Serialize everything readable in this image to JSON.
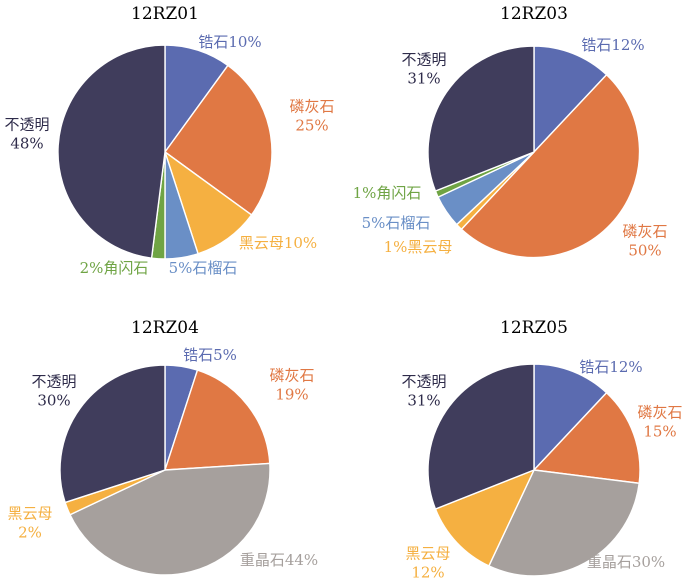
{
  "chart_data": [
    {
      "type": "pie",
      "title": "12RZ01",
      "slices": [
        {
          "label": "锆石",
          "value": 10,
          "color": "#5b6bb0",
          "lines": [
            "锆石10%"
          ]
        },
        {
          "label": "磷灰石",
          "value": 25,
          "color": "#e07844",
          "lines": [
            "磷灰石",
            "25%"
          ]
        },
        {
          "label": "黑云母",
          "value": 10,
          "color": "#f5b041",
          "lines": [
            "黑云母10%"
          ]
        },
        {
          "label": "石榴石",
          "value": 5,
          "color": "#6a8fc6",
          "lines": [
            "5%石榴石"
          ]
        },
        {
          "label": "角闪石",
          "value": 2,
          "color": "#6fa444",
          "lines": [
            "2%角闪石"
          ]
        },
        {
          "label": "不透明",
          "value": 48,
          "color": "#403d5c",
          "lines": [
            "不透明",
            "48%"
          ]
        }
      ]
    },
    {
      "type": "pie",
      "title": "12RZ03",
      "slices": [
        {
          "label": "锆石",
          "value": 12,
          "color": "#5b6bb0",
          "lines": [
            "锆石12%"
          ]
        },
        {
          "label": "磷灰石",
          "value": 50,
          "color": "#e07844",
          "lines": [
            "磷灰石",
            "50%"
          ]
        },
        {
          "label": "黑云母",
          "value": 1,
          "color": "#f5b041",
          "lines": [
            "1%黑云母"
          ]
        },
        {
          "label": "石榴石",
          "value": 5,
          "color": "#6a8fc6",
          "lines": [
            "5%石榴石"
          ]
        },
        {
          "label": "角闪石",
          "value": 1,
          "color": "#6fa444",
          "lines": [
            "1%角闪石"
          ]
        },
        {
          "label": "不透明",
          "value": 31,
          "color": "#403d5c",
          "lines": [
            "不透明",
            "31%"
          ]
        }
      ]
    },
    {
      "type": "pie",
      "title": "12RZ04",
      "slices": [
        {
          "label": "锆石",
          "value": 5,
          "color": "#5b6bb0",
          "lines": [
            "锆石5%"
          ]
        },
        {
          "label": "磷灰石",
          "value": 19,
          "color": "#e07844",
          "lines": [
            "磷灰石",
            "19%"
          ]
        },
        {
          "label": "重晶石",
          "value": 44,
          "color": "#a6a09d",
          "lines": [
            "重晶石44%"
          ]
        },
        {
          "label": "黑云母",
          "value": 2,
          "color": "#f5b041",
          "lines": [
            "黑云母",
            "2%"
          ]
        },
        {
          "label": "不透明",
          "value": 30,
          "color": "#403d5c",
          "lines": [
            "不透明",
            "30%"
          ]
        }
      ]
    },
    {
      "type": "pie",
      "title": "12RZ05",
      "slices": [
        {
          "label": "锆石",
          "value": 12,
          "color": "#5b6bb0",
          "lines": [
            "锆石12%"
          ]
        },
        {
          "label": "磷灰石",
          "value": 15,
          "color": "#e07844",
          "lines": [
            "磷灰石",
            "15%"
          ]
        },
        {
          "label": "重晶石",
          "value": 30,
          "color": "#a6a09d",
          "lines": [
            "重晶石30%"
          ]
        },
        {
          "label": "黑云母",
          "value": 12,
          "color": "#f5b041",
          "lines": [
            "黑云母",
            "12%"
          ]
        },
        {
          "label": "不透明",
          "value": 31,
          "color": "#403d5c",
          "lines": [
            "不透明",
            "31%"
          ]
        }
      ]
    }
  ]
}
